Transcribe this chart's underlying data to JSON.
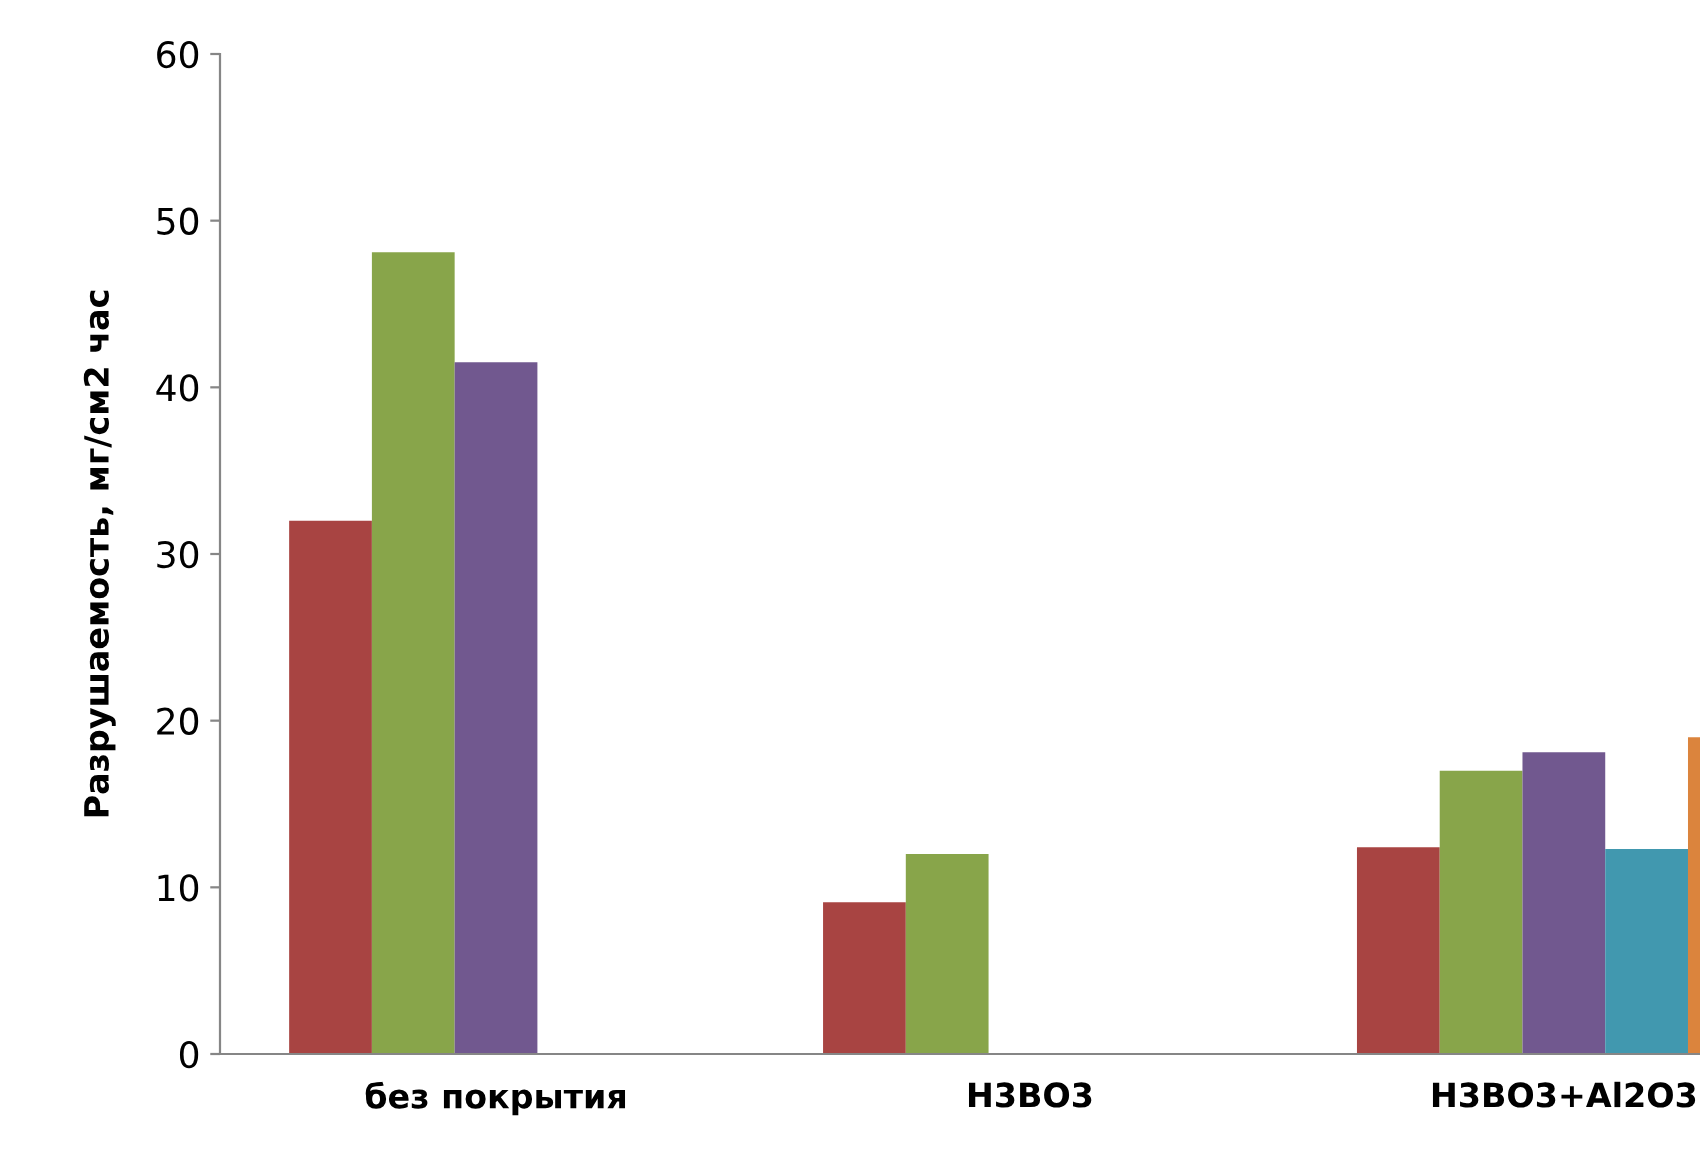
{
  "chart_data": {
    "type": "bar",
    "ylabel": "Разрушаемость, мг/см2 час",
    "categories": [
      "без покрытия",
      "H3BO3",
      "H3BO3+Al2O3"
    ],
    "series": [
      {
        "color": "#a84442",
        "values": [
          32,
          9.1,
          12.4
        ]
      },
      {
        "color": "#88a54a",
        "values": [
          48.1,
          12,
          17
        ]
      },
      {
        "color": "#71588f",
        "values": [
          41.5,
          null,
          18.1
        ]
      },
      {
        "color": "#4198af",
        "values": [
          null,
          null,
          12.3
        ]
      },
      {
        "color": "#db843d",
        "values": [
          null,
          null,
          19
        ]
      }
    ],
    "ylim": [
      0,
      60
    ],
    "yticks": [
      0,
      10,
      20,
      30,
      40,
      50,
      60
    ],
    "grid": false
  }
}
